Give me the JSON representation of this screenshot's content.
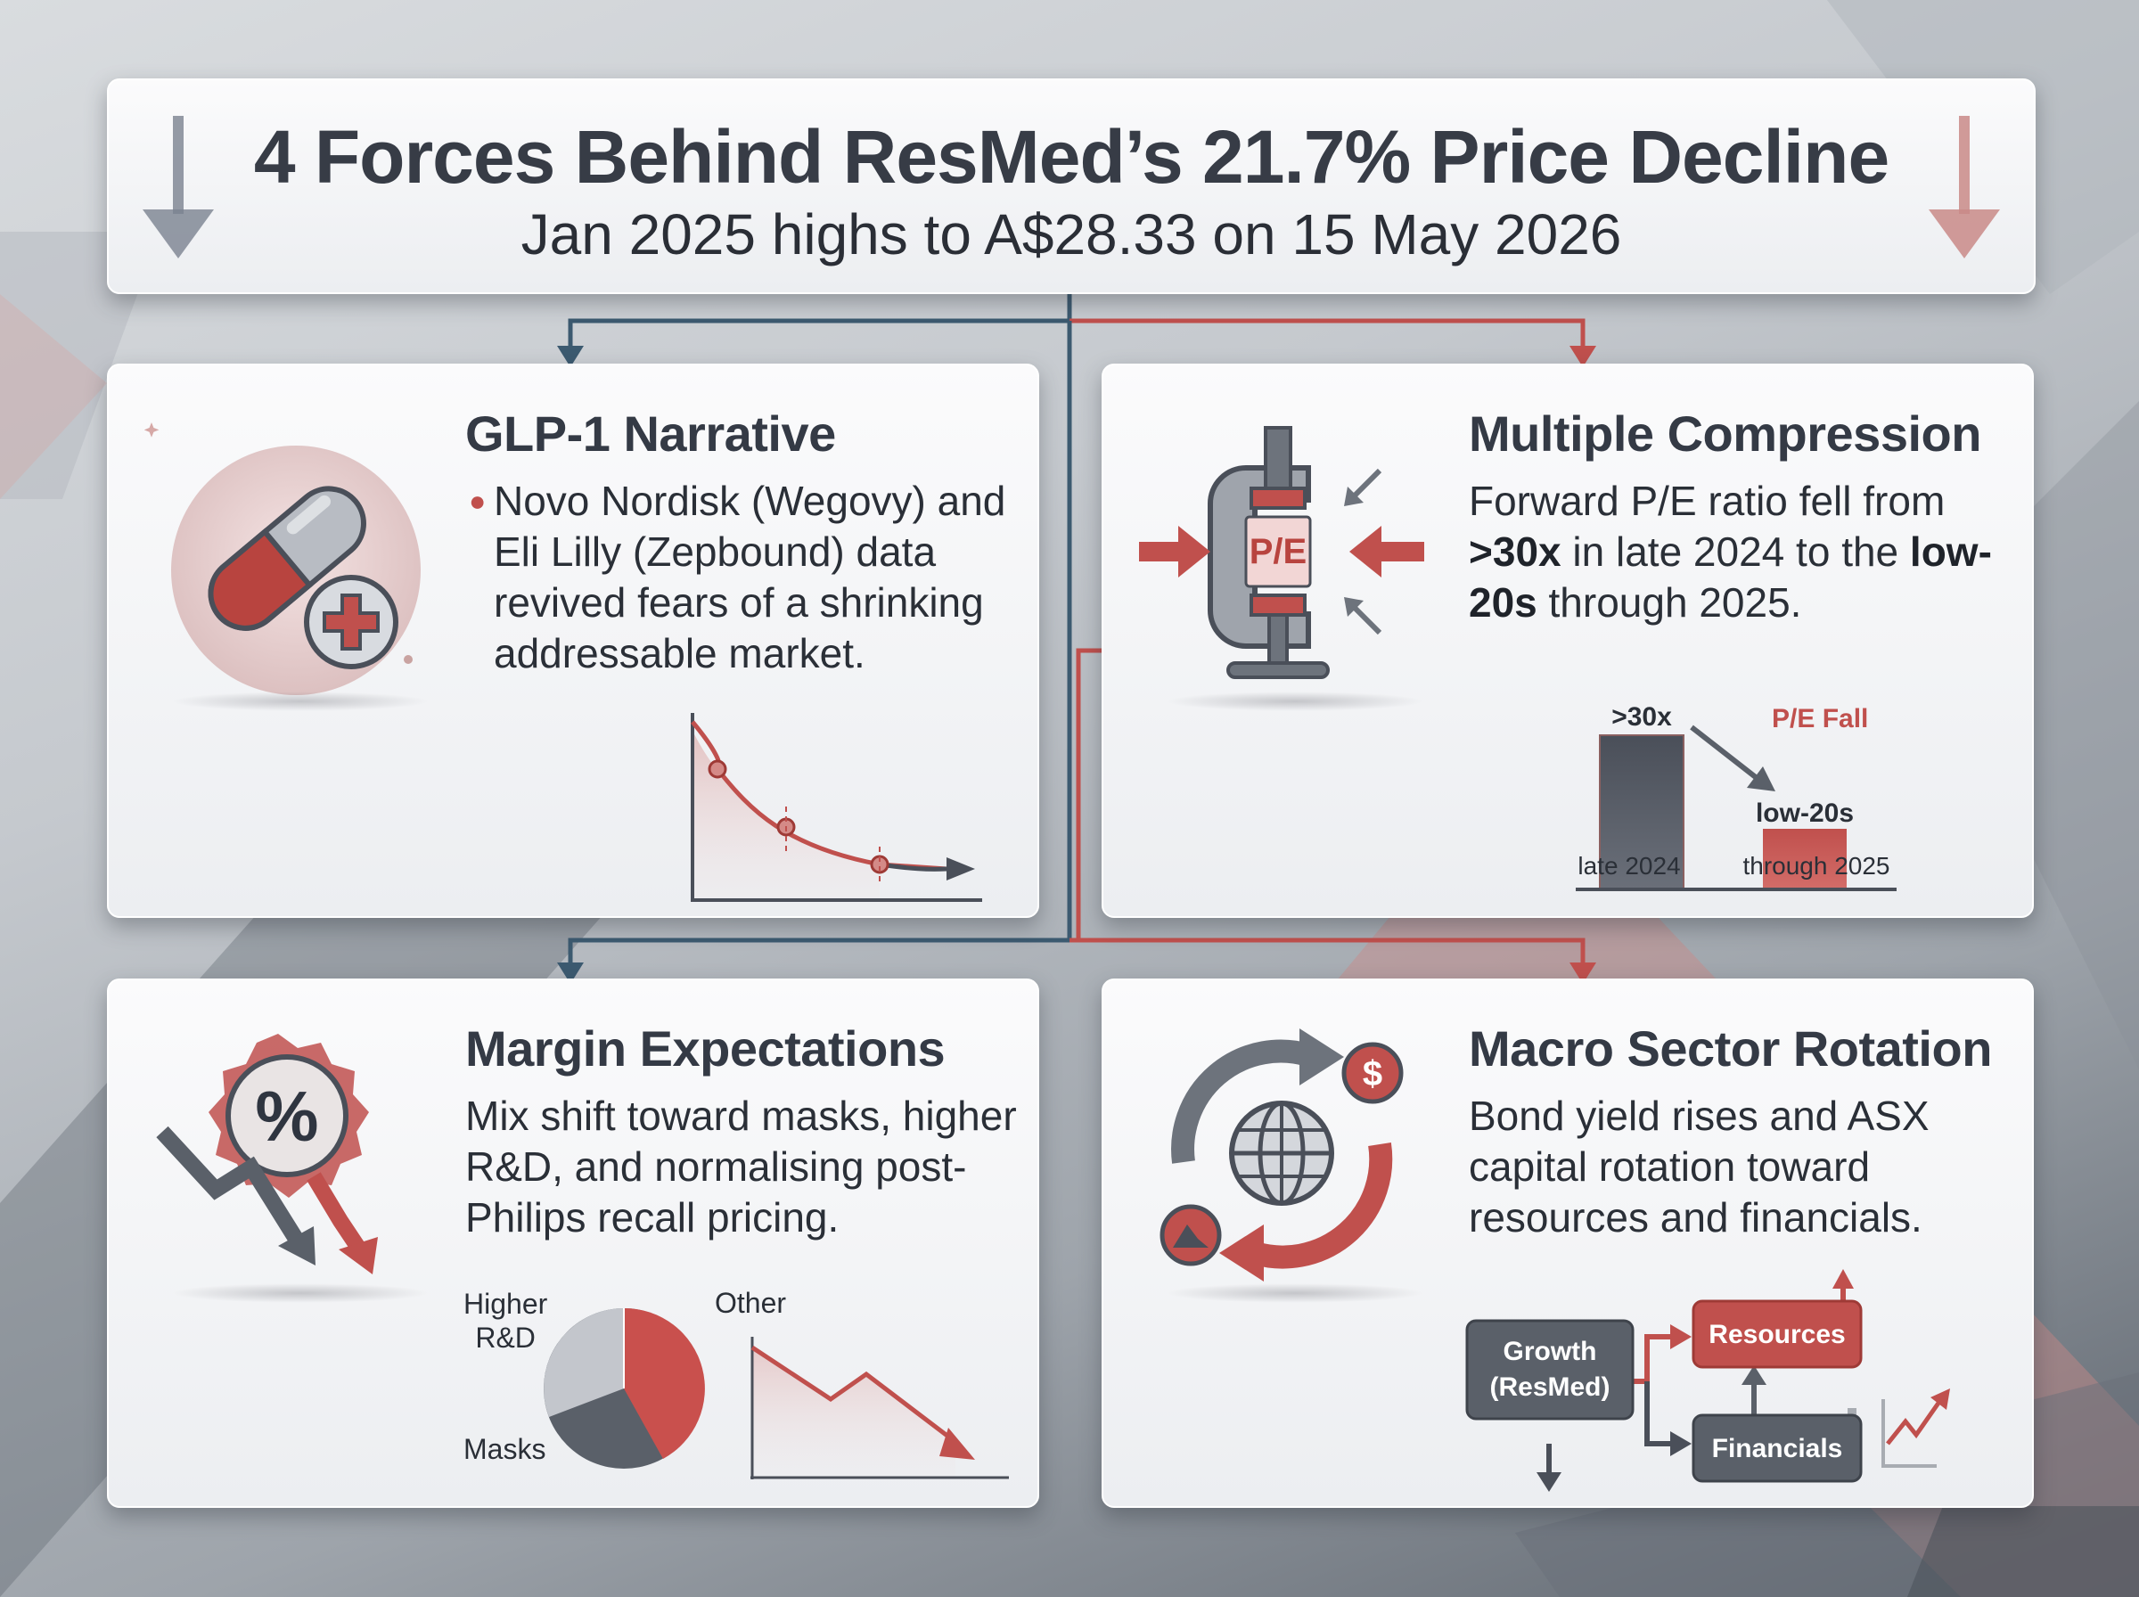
{
  "header": {
    "title": "4 Forces Behind ResMed’s 21.7% Price Decline",
    "subtitle": "Jan 2025 highs to A$28.33 on 15 May 2026"
  },
  "cards": {
    "glp1": {
      "title": "GLP-1 Narrative",
      "body": "Novo Nordisk (Wegovy) and Eli Lilly (Zepbound) data revived fears of a shrinking addressable market.",
      "icon": "pill-capsule-icon"
    },
    "multiple": {
      "title": "Multiple Compression",
      "body_parts": [
        "Forward P/E ratio fell from ",
        ">30x",
        " in late 2024 to the ",
        "low-20s",
        " through 2025."
      ],
      "icon": "clamp-icon",
      "icon_label": "P/E",
      "chart": {
        "bars": [
          {
            "label": "late 2024",
            "value_label": ">30x"
          },
          {
            "label": "through 2025",
            "value_label": "low-20s"
          }
        ],
        "annotation": "P/E Fall"
      }
    },
    "margin": {
      "title": "Margin Expectations",
      "body": "Mix shift toward masks, higher R&D, and normalising post-Philips recall pricing.",
      "icon": "percent-badge-icon",
      "pie_labels": {
        "rd_line1": "Higher",
        "rd_line2": "R&D",
        "other": "Other",
        "masks": "Masks"
      }
    },
    "macro": {
      "title": "Macro Sector Rotation",
      "body": "Bond yield rises and ASX capital rotation toward resources and financials.",
      "icon": "globe-rotation-icon",
      "flow": {
        "growth_line1": "Growth",
        "growth_line2": "(ResMed)",
        "resources": "Resources",
        "financials": "Financials"
      }
    }
  },
  "colors": {
    "accent_red": "#c0504d",
    "dark_slate": "#4a4f59",
    "blue_slate": "#3c5a70"
  }
}
